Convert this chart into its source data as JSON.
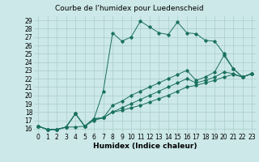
{
  "title": "Courbe de l'humidex pour Luedenscheid",
  "xlabel": "Humidex (Indice chaleur)",
  "xlim": [
    -0.5,
    23.5
  ],
  "ylim": [
    15.5,
    29.5
  ],
  "xticks": [
    0,
    1,
    2,
    3,
    4,
    5,
    6,
    7,
    8,
    9,
    10,
    11,
    12,
    13,
    14,
    15,
    16,
    17,
    18,
    19,
    20,
    21,
    22,
    23
  ],
  "yticks": [
    16,
    17,
    18,
    19,
    20,
    21,
    22,
    23,
    24,
    25,
    26,
    27,
    28,
    29
  ],
  "background_color": "#cce8e8",
  "grid_color": "#aacccc",
  "line_color": "#1a7060",
  "lines": [
    {
      "x": [
        0,
        1,
        2,
        3,
        4,
        5,
        6,
        7,
        8,
        9,
        10,
        11,
        12,
        13,
        14,
        15,
        16,
        17,
        18,
        19,
        20,
        21,
        22,
        23
      ],
      "y": [
        16.3,
        15.9,
        15.9,
        16.2,
        16.2,
        16.3,
        17.2,
        20.5,
        27.5,
        26.5,
        27.0,
        28.9,
        28.2,
        27.5,
        27.3,
        28.8,
        27.5,
        27.4,
        26.6,
        26.5,
        25.0,
        23.2,
        22.2,
        22.6
      ]
    },
    {
      "x": [
        0,
        1,
        2,
        3,
        4,
        5,
        6,
        7,
        8,
        9,
        10,
        11,
        12,
        13,
        14,
        15,
        16,
        17,
        18,
        19,
        20,
        21,
        22,
        23
      ],
      "y": [
        16.3,
        15.9,
        15.9,
        16.2,
        17.8,
        16.3,
        17.2,
        17.3,
        18.8,
        19.3,
        20.0,
        20.5,
        21.0,
        21.5,
        22.0,
        22.5,
        23.0,
        21.8,
        22.2,
        22.8,
        24.8,
        23.2,
        22.2,
        22.6
      ]
    },
    {
      "x": [
        0,
        1,
        2,
        3,
        4,
        5,
        6,
        7,
        8,
        9,
        10,
        11,
        12,
        13,
        14,
        15,
        16,
        17,
        18,
        19,
        20,
        21,
        22,
        23
      ],
      "y": [
        16.3,
        15.9,
        15.9,
        16.2,
        17.8,
        16.3,
        17.2,
        17.3,
        18.0,
        18.5,
        19.0,
        19.5,
        20.0,
        20.5,
        21.0,
        21.5,
        22.0,
        21.5,
        21.8,
        22.2,
        22.8,
        22.6,
        22.2,
        22.6
      ]
    },
    {
      "x": [
        0,
        1,
        2,
        3,
        4,
        5,
        6,
        7,
        8,
        9,
        10,
        11,
        12,
        13,
        14,
        15,
        16,
        17,
        18,
        19,
        20,
        21,
        22,
        23
      ],
      "y": [
        16.3,
        15.9,
        15.9,
        16.2,
        17.8,
        16.3,
        17.0,
        17.3,
        18.0,
        18.2,
        18.5,
        18.8,
        19.2,
        19.6,
        20.0,
        20.5,
        21.0,
        21.2,
        21.5,
        21.8,
        22.2,
        22.5,
        22.2,
        22.6
      ]
    }
  ],
  "title_fontsize": 6.5,
  "axis_fontsize": 6.5,
  "tick_fontsize": 5.5
}
